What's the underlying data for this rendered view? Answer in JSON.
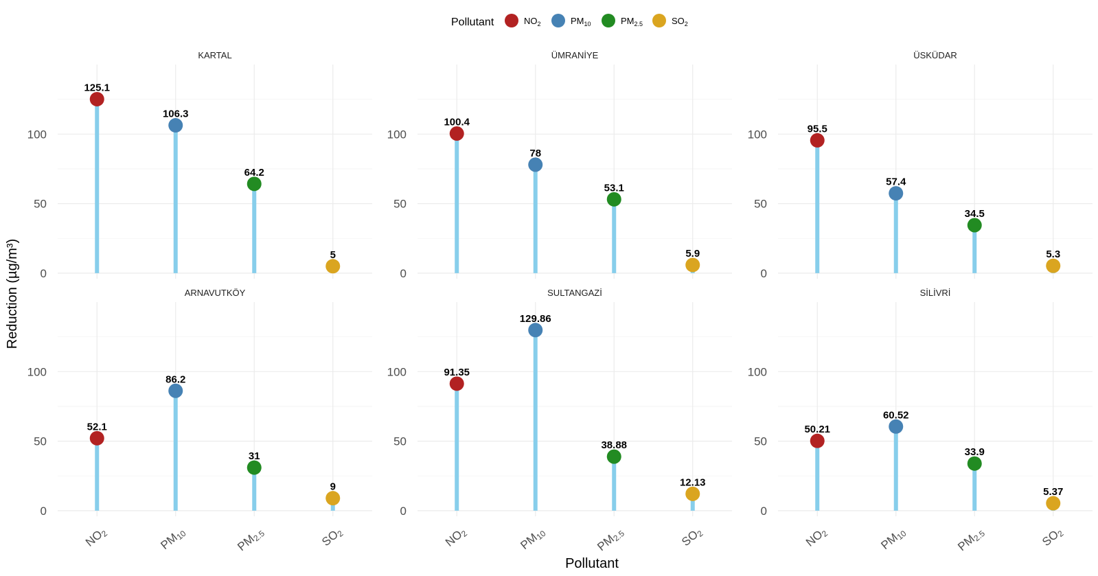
{
  "chart_data": {
    "type": "lollipop",
    "xlabel": "Pollutant",
    "ylabel": "Reduction (µg/m³)",
    "ylim": [
      -4,
      150
    ],
    "y_ticks": [
      0,
      50,
      100
    ],
    "grid": true,
    "legend": {
      "title": "Pollutant",
      "position": "top",
      "entries": [
        {
          "key": "NO2",
          "base": "NO",
          "sub": "2",
          "color": "#b22222"
        },
        {
          "key": "PM10",
          "base": "PM",
          "sub": "10",
          "color": "#4682b4"
        },
        {
          "key": "PM2.5",
          "base": "PM",
          "sub": "2.5",
          "color": "#228b22"
        },
        {
          "key": "SO2",
          "base": "SO",
          "sub": "2",
          "color": "#daa520"
        }
      ]
    },
    "categories": [
      "NO2",
      "PM10",
      "PM2.5",
      "SO2"
    ],
    "stem_color": "#87ceeb",
    "facets": [
      {
        "title": "KARTAL",
        "values": [
          125.1,
          106.3,
          64.2,
          5
        ],
        "labels": [
          "125.1",
          "106.3",
          "64.2",
          "5"
        ]
      },
      {
        "title": "ÜMRANİYE",
        "values": [
          100.4,
          78,
          53.1,
          5.9
        ],
        "labels": [
          "100.4",
          "78",
          "53.1",
          "5.9"
        ]
      },
      {
        "title": "ÜSKÜDAR",
        "values": [
          95.5,
          57.4,
          34.5,
          5.3
        ],
        "labels": [
          "95.5",
          "57.4",
          "34.5",
          "5.3"
        ]
      },
      {
        "title": "ARNAVUTKÖY",
        "values": [
          52.1,
          86.2,
          31,
          9
        ],
        "labels": [
          "52.1",
          "86.2",
          "31",
          "9"
        ]
      },
      {
        "title": "SULTANGAZİ",
        "values": [
          91.35,
          129.86,
          38.88,
          12.13
        ],
        "labels": [
          "91.35",
          "129.86",
          "38.88",
          "12.13"
        ]
      },
      {
        "title": "SİLİVRİ",
        "values": [
          50.21,
          60.52,
          33.9,
          5.37
        ],
        "labels": [
          "50.21",
          "60.52",
          "33.9",
          "5.37"
        ]
      }
    ]
  }
}
